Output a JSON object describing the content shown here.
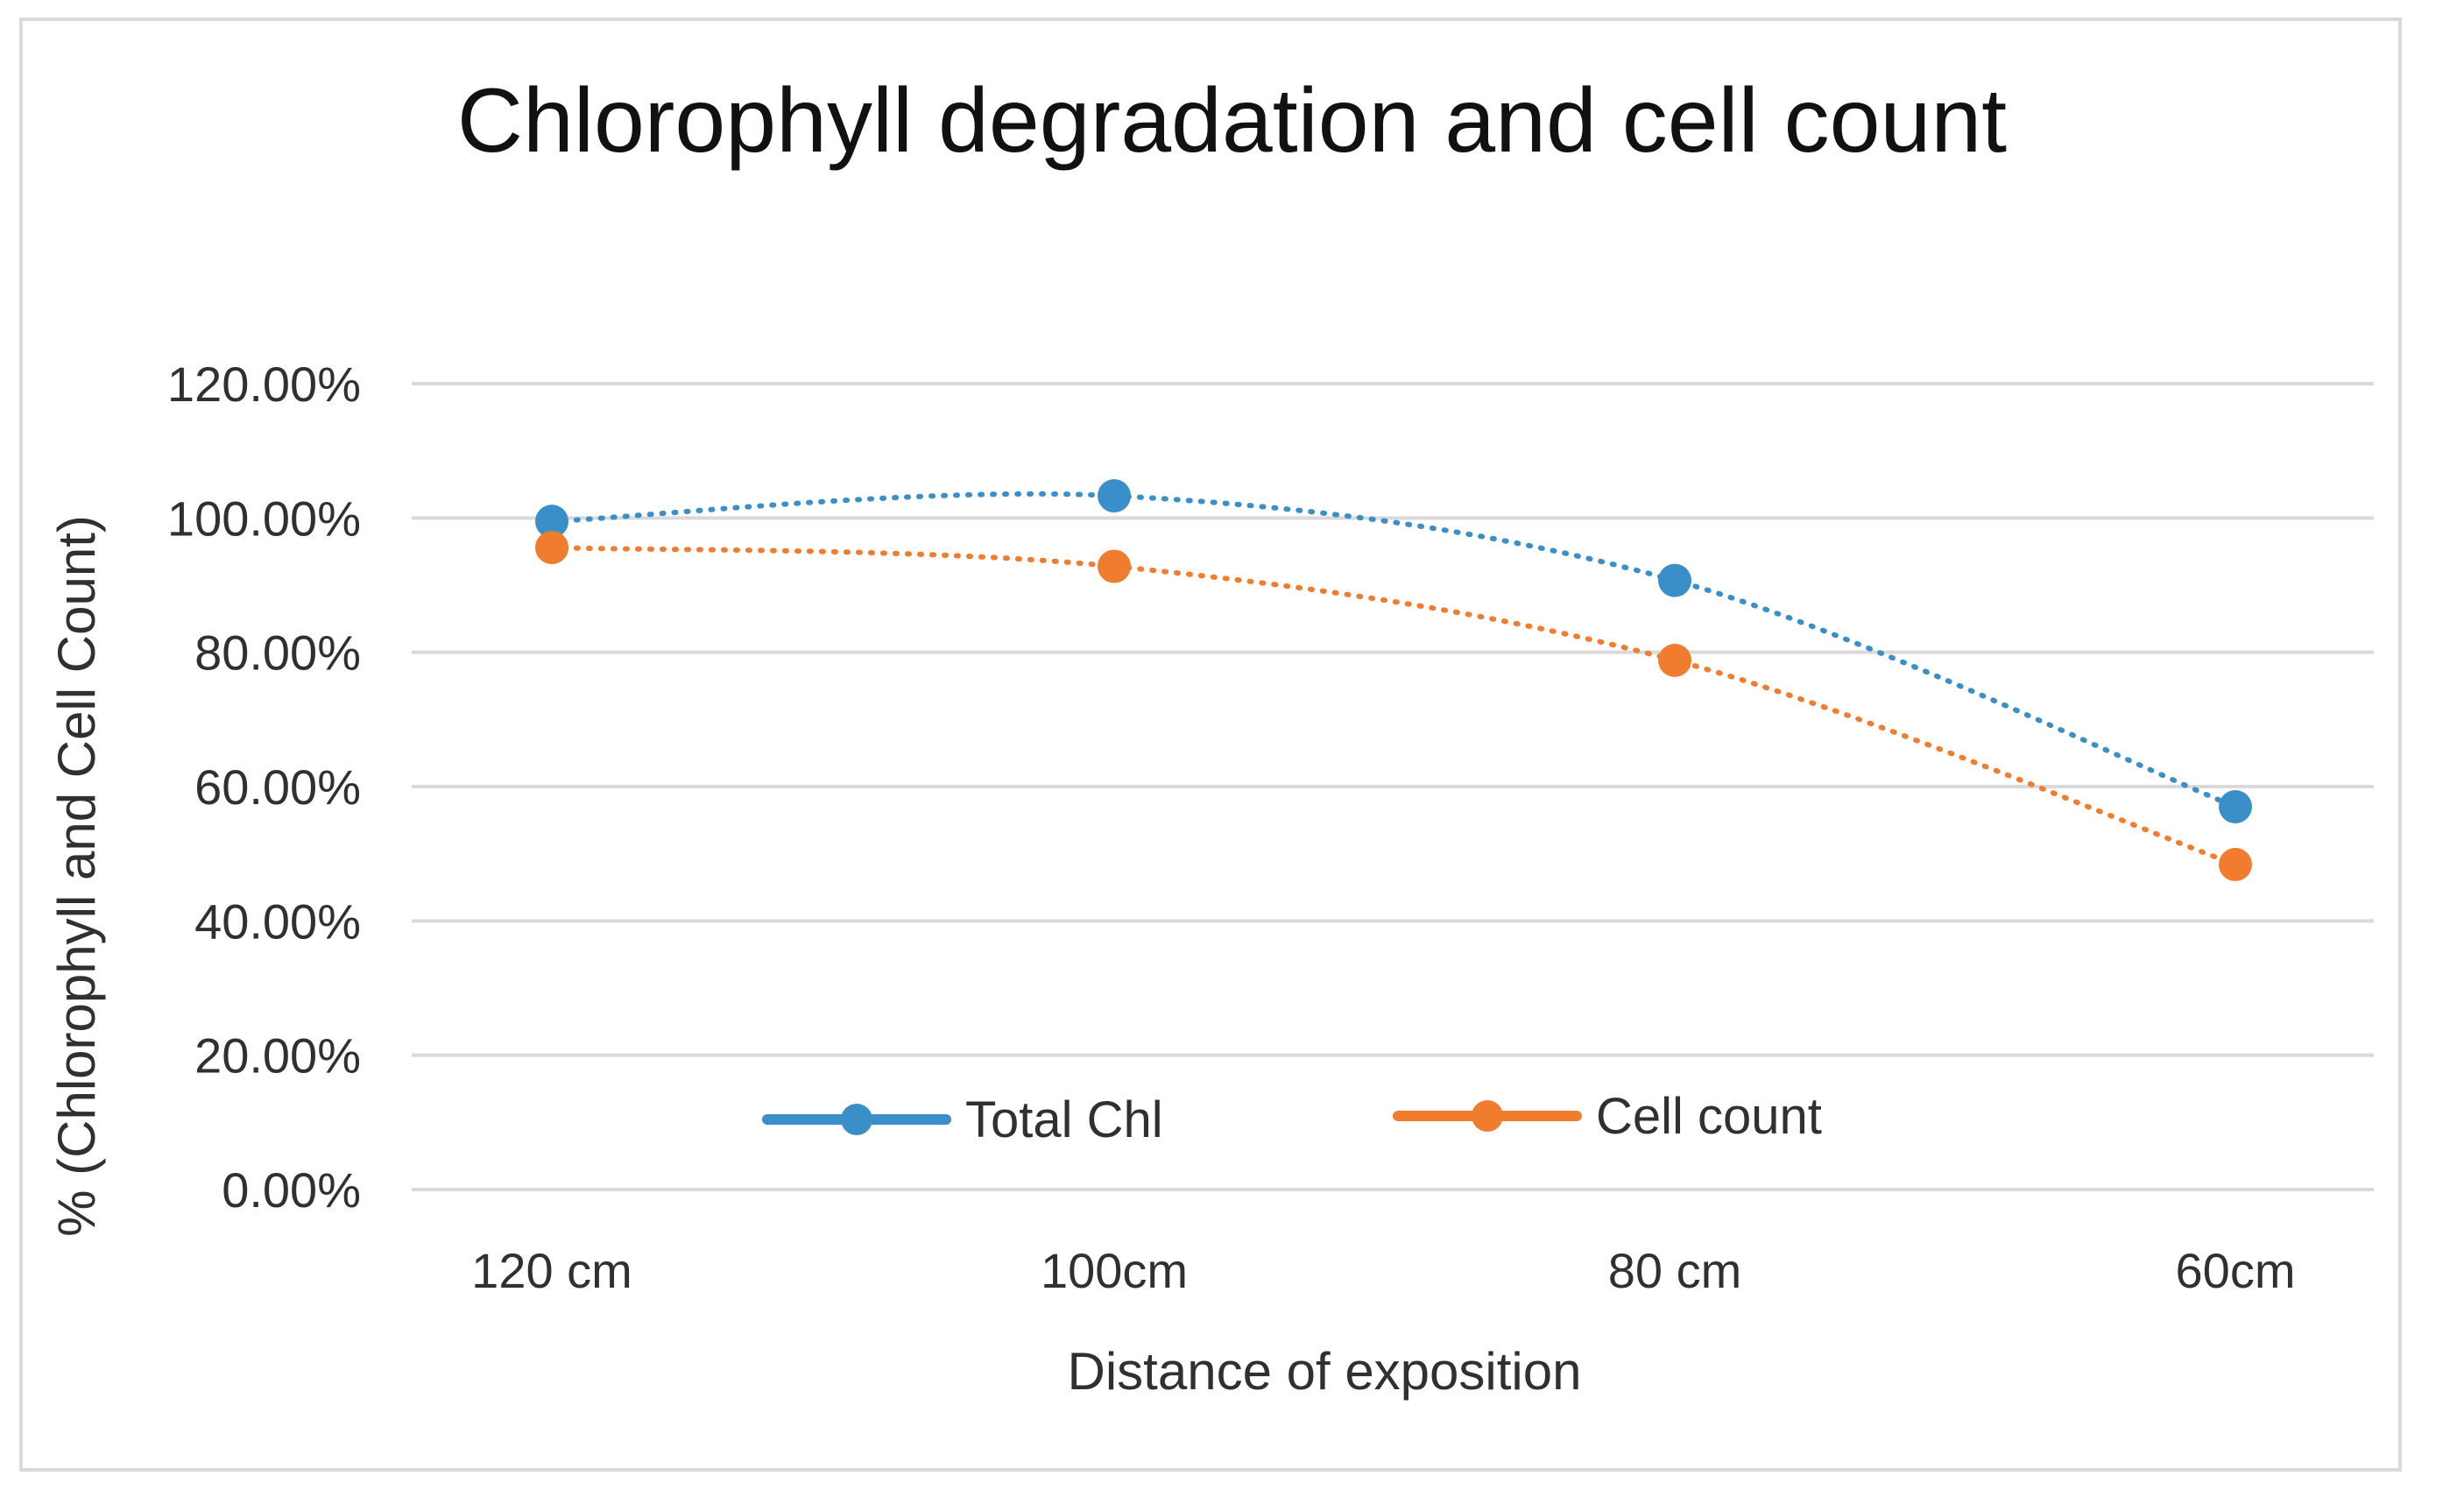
{
  "chart_data": {
    "type": "line",
    "title": "Chlorophyll degradation and cell count",
    "xlabel": "Distance of exposition",
    "ylabel": "% (Chlorophyll and Cell Count)",
    "categories": [
      "120 cm",
      "100cm",
      "80 cm",
      "60cm"
    ],
    "ylim": [
      0,
      1.2
    ],
    "yticks": [
      0,
      0.2,
      0.4,
      0.6,
      0.8,
      1.0,
      1.2
    ],
    "ytick_labels": [
      "0.00%",
      "20.00%",
      "40.00%",
      "60.00%",
      "80.00%",
      "100.00%",
      "120.00%"
    ],
    "grid": true,
    "legend_position": "bottom-center (inside plot)",
    "series": [
      {
        "name": "Total Chl",
        "values": [
          0.995,
          1.033,
          0.907,
          0.57
        ],
        "color": "#3a8fc8"
      },
      {
        "name": "Cell count",
        "values": [
          0.956,
          0.928,
          0.788,
          0.484
        ],
        "color": "#f07c2e"
      }
    ]
  },
  "colors": {
    "grid": "#d9d9d9",
    "text": "#303030",
    "frame": "#d9d9d9"
  }
}
